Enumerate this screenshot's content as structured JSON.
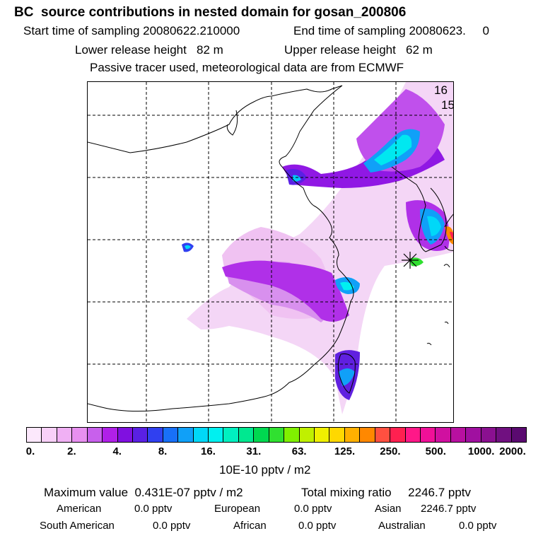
{
  "header": {
    "title": "BC  source contributions in nested domain for gosan_200806",
    "start_label": "Start time of sampling 20080622.210000",
    "end_label": "End time of sampling 20080623.     0",
    "lower_label": "Lower release height   82 m",
    "upper_label": "Upper release height   62 m",
    "tracer_label": "Passive tracer used, meteorological data are from ECMWF"
  },
  "map": {
    "corner_label_1": "16",
    "corner_label_2": "15",
    "receptor_marker": "receptor-star-icon",
    "coastline_color": "#000000",
    "grid_style": "dashed"
  },
  "colorbar": {
    "colors": [
      "#fce8fc",
      "#f8d0f8",
      "#f0b0f4",
      "#e890f0",
      "#c860ec",
      "#b020e8",
      "#8010e0",
      "#5a20e4",
      "#3040f0",
      "#1870f8",
      "#10a0f8",
      "#00d8f8",
      "#00f0f0",
      "#00f0c0",
      "#00e890",
      "#00d850",
      "#30e030",
      "#80f000",
      "#c0f000",
      "#f0f000",
      "#ffd800",
      "#ffb000",
      "#ff8800",
      "#ff5040",
      "#ff2050",
      "#ff1888",
      "#f01098",
      "#d010a0",
      "#b810a0",
      "#a010a0",
      "#8a1090",
      "#701080",
      "#5a0a70"
    ],
    "tick_labels": [
      "0.",
      "2.",
      "4.",
      "8.",
      "16.",
      "31.",
      "63.",
      "125.",
      "250.",
      "500.",
      "1000.",
      "2000."
    ],
    "units": "10E-10 pptv / m2"
  },
  "footer": {
    "max_label": "Maximum value  0.431E-07 pptv / m2",
    "total_label": "Total mixing ratio     2246.7 pptv",
    "american_label": "American",
    "american_value": "0.0 pptv",
    "european_label": "European",
    "european_value": "0.0 pptv",
    "asian_label": "Asian",
    "asian_value": "2246.7 pptv",
    "south_american_label": "South American",
    "south_american_value": "0.0 pptv",
    "african_label": "African",
    "african_value": "0.0 pptv",
    "australian_label": "Australian",
    "australian_value": "0.0 pptv"
  }
}
